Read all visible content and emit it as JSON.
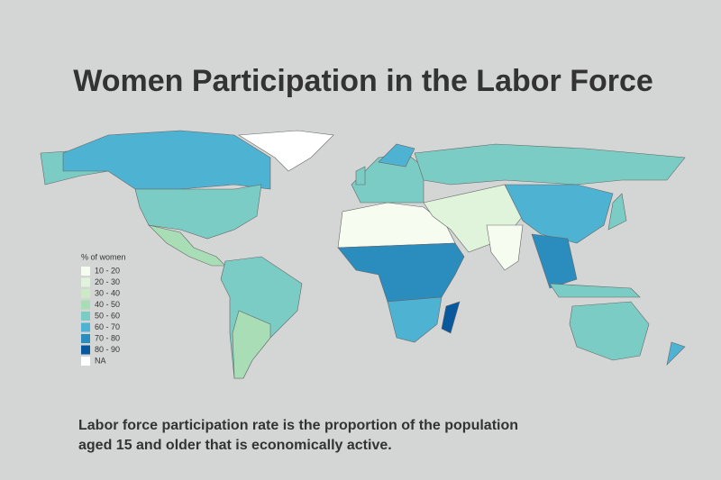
{
  "title": "Women Participation in the Labor Force",
  "legend": {
    "title": "% of women",
    "items": [
      {
        "label": "10 - 20",
        "color": "#f7fcf0"
      },
      {
        "label": "20 - 30",
        "color": "#e0f3db"
      },
      {
        "label": "30 - 40",
        "color": "#ccebc5"
      },
      {
        "label": "40 - 50",
        "color": "#a8ddb5"
      },
      {
        "label": "50 - 60",
        "color": "#7bccc4"
      },
      {
        "label": "60 - 70",
        "color": "#4eb3d3"
      },
      {
        "label": "70 - 80",
        "color": "#2b8cbe"
      },
      {
        "label": "80 - 90",
        "color": "#08589e"
      },
      {
        "label": "NA",
        "color": "#ffffff"
      }
    ]
  },
  "caption": [
    "Labor force participation rate is the proportion of the population",
    "aged 15 and older that is economically active."
  ]
}
